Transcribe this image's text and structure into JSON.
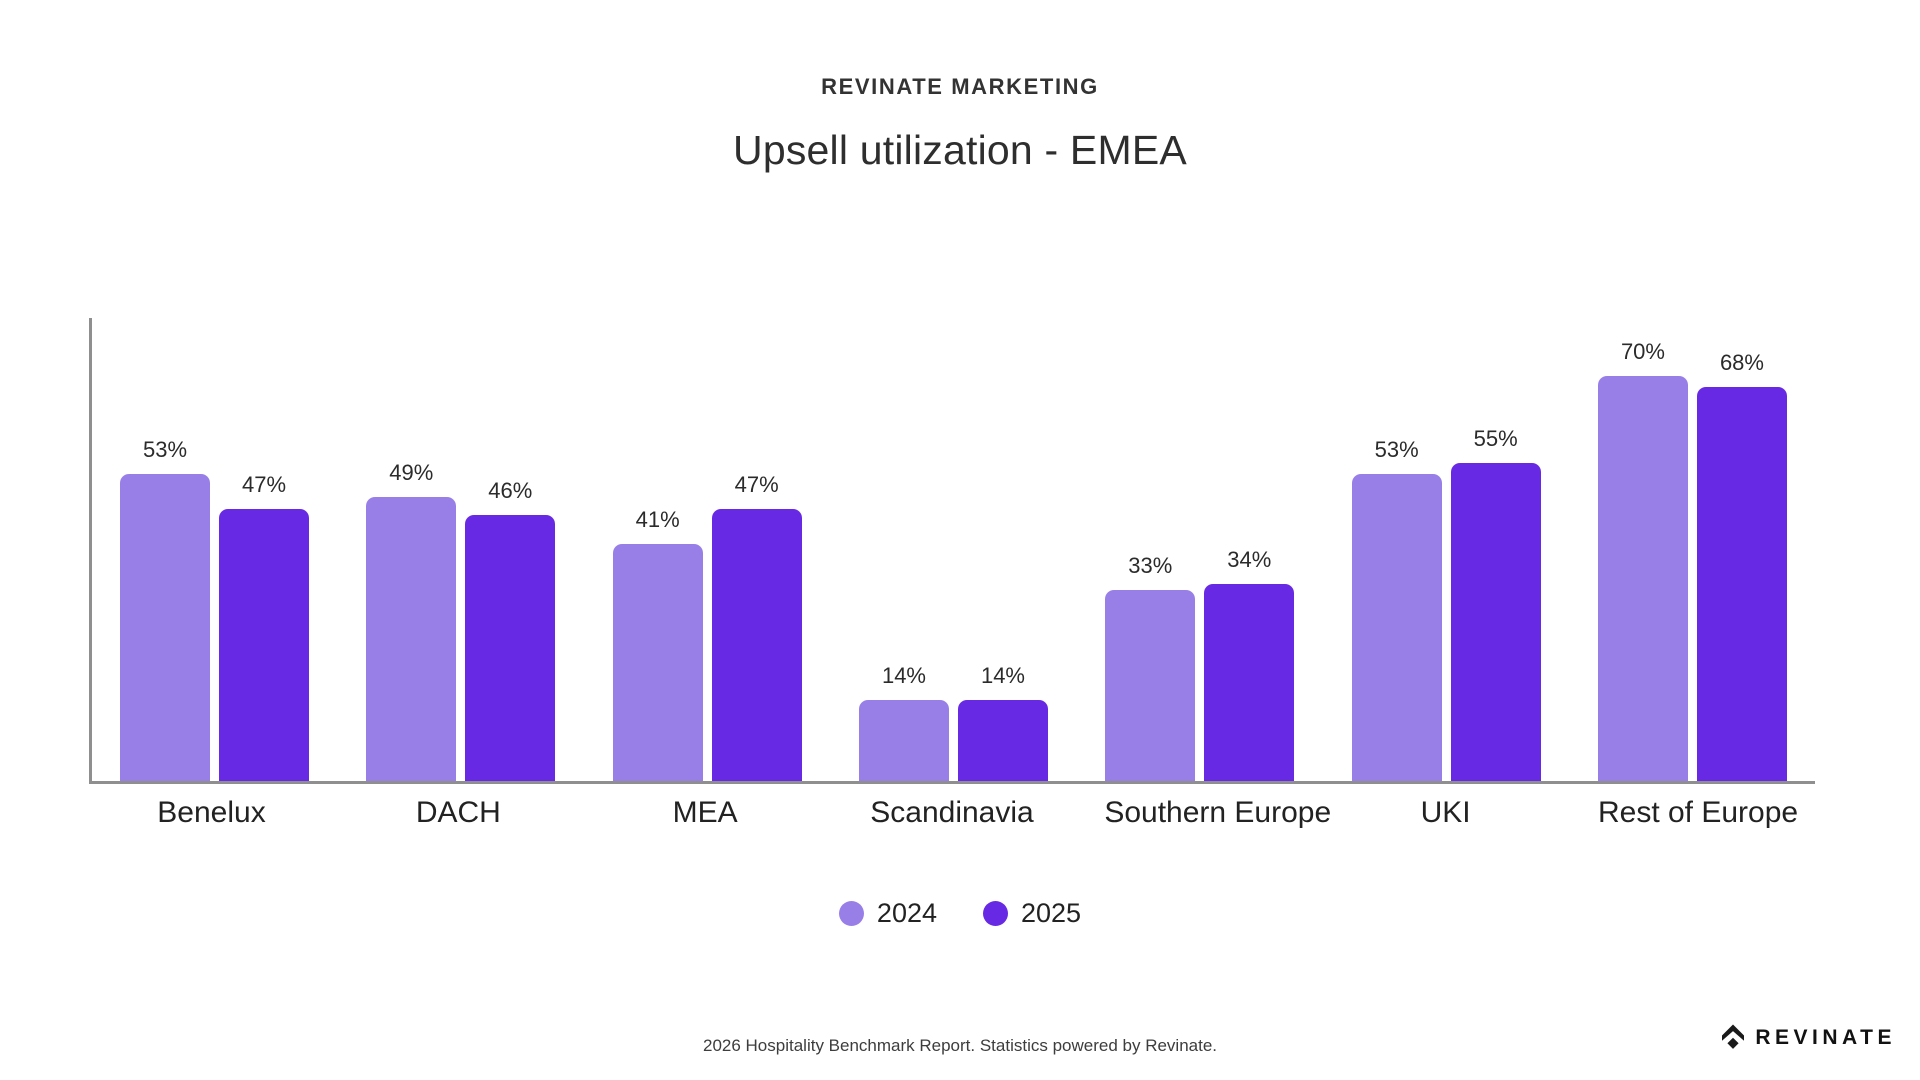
{
  "header": {
    "kicker": "REVINATE MARKETING",
    "title": "Upsell utilization - EMEA"
  },
  "chart_data": {
    "type": "bar",
    "title": "Upsell utilization - EMEA",
    "categories": [
      "Benelux",
      "DACH",
      "MEA",
      "Scandinavia",
      "Southern Europe",
      "UKI",
      "Rest of Europe"
    ],
    "series": [
      {
        "name": "2024",
        "color": "#987fe8",
        "values": [
          53,
          49,
          41,
          14,
          33,
          53,
          70
        ]
      },
      {
        "name": "2025",
        "color": "#6729e3",
        "values": [
          47,
          46,
          47,
          14,
          34,
          55,
          68
        ]
      }
    ],
    "value_suffix": "%",
    "xlabel": "",
    "ylabel": "",
    "ylim": [
      0,
      80
    ],
    "grid": false,
    "legend_position": "bottom"
  },
  "footer": {
    "note": "2026 Hospitality Benchmark Report. Statistics powered by Revinate.",
    "logo_text": "REVINATE"
  }
}
